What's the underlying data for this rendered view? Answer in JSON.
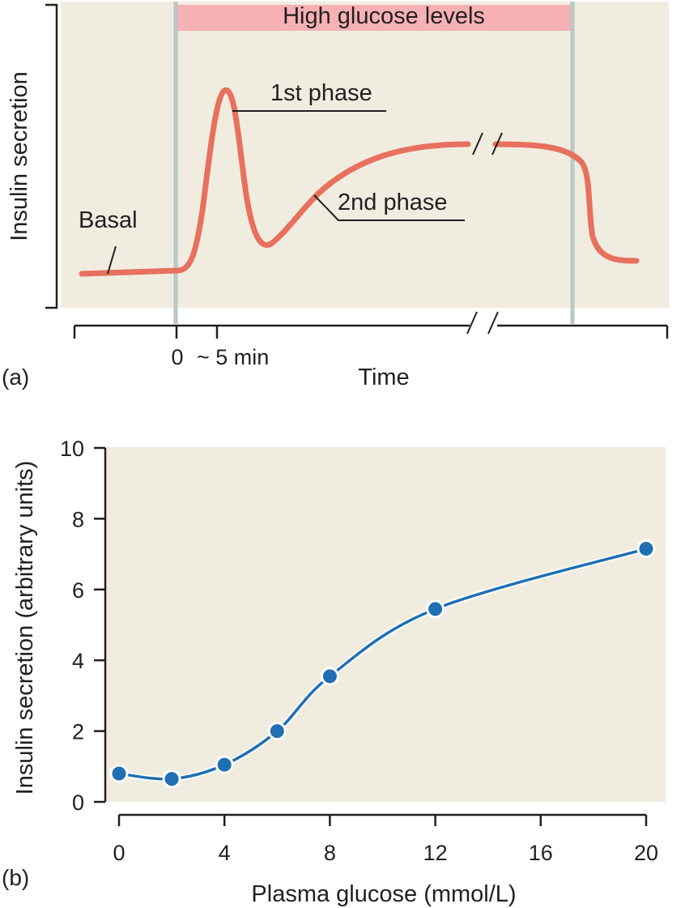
{
  "colors": {
    "panel_background": "#f1ece0",
    "glucose_band": "#f7b1b5",
    "marker_line_outer": "#a9c8d0",
    "marker_line_inner": "#e2c69a",
    "response_curve": "#e8705e",
    "dose_curve": "#1f6fb2",
    "axis": "#231f20"
  },
  "chart_data": [
    {
      "type": "line",
      "panel_label": "(a)",
      "ylabel": "Insulin secretion",
      "xlabel": "Time",
      "x_tick_labels": [
        "0",
        "~ 5 min"
      ],
      "x_axis_break": true,
      "band_label": "High glucose levels",
      "annotations": [
        "Basal",
        "1st phase",
        "2nd phase"
      ],
      "series": [
        {
          "x_minutes": [
            -10,
            0,
            2,
            4,
            5,
            6,
            8,
            10,
            14,
            20,
            30,
            40,
            50,
            52,
            55
          ],
          "y_relative": [
            0.02,
            0.03,
            0.14,
            0.64,
            0.9,
            0.58,
            0.16,
            0.13,
            0.26,
            0.43,
            0.53,
            0.56,
            0.52,
            0.17,
            0.06
          ]
        }
      ]
    },
    {
      "type": "line",
      "panel_label": "(b)",
      "xlabel": "Plasma glucose (mmol/L)",
      "ylabel": "Insulin secretion (arbitrary units)",
      "xlim": [
        0,
        20
      ],
      "ylim": [
        0,
        10
      ],
      "x_ticks": [
        0,
        4,
        8,
        12,
        16,
        20
      ],
      "y_ticks": [
        0,
        2,
        4,
        6,
        8,
        10
      ],
      "series": [
        {
          "x": [
            0,
            2,
            4,
            6,
            8,
            12,
            20
          ],
          "y": [
            0.8,
            0.65,
            1.05,
            2.0,
            3.55,
            5.45,
            7.15
          ]
        }
      ]
    }
  ]
}
